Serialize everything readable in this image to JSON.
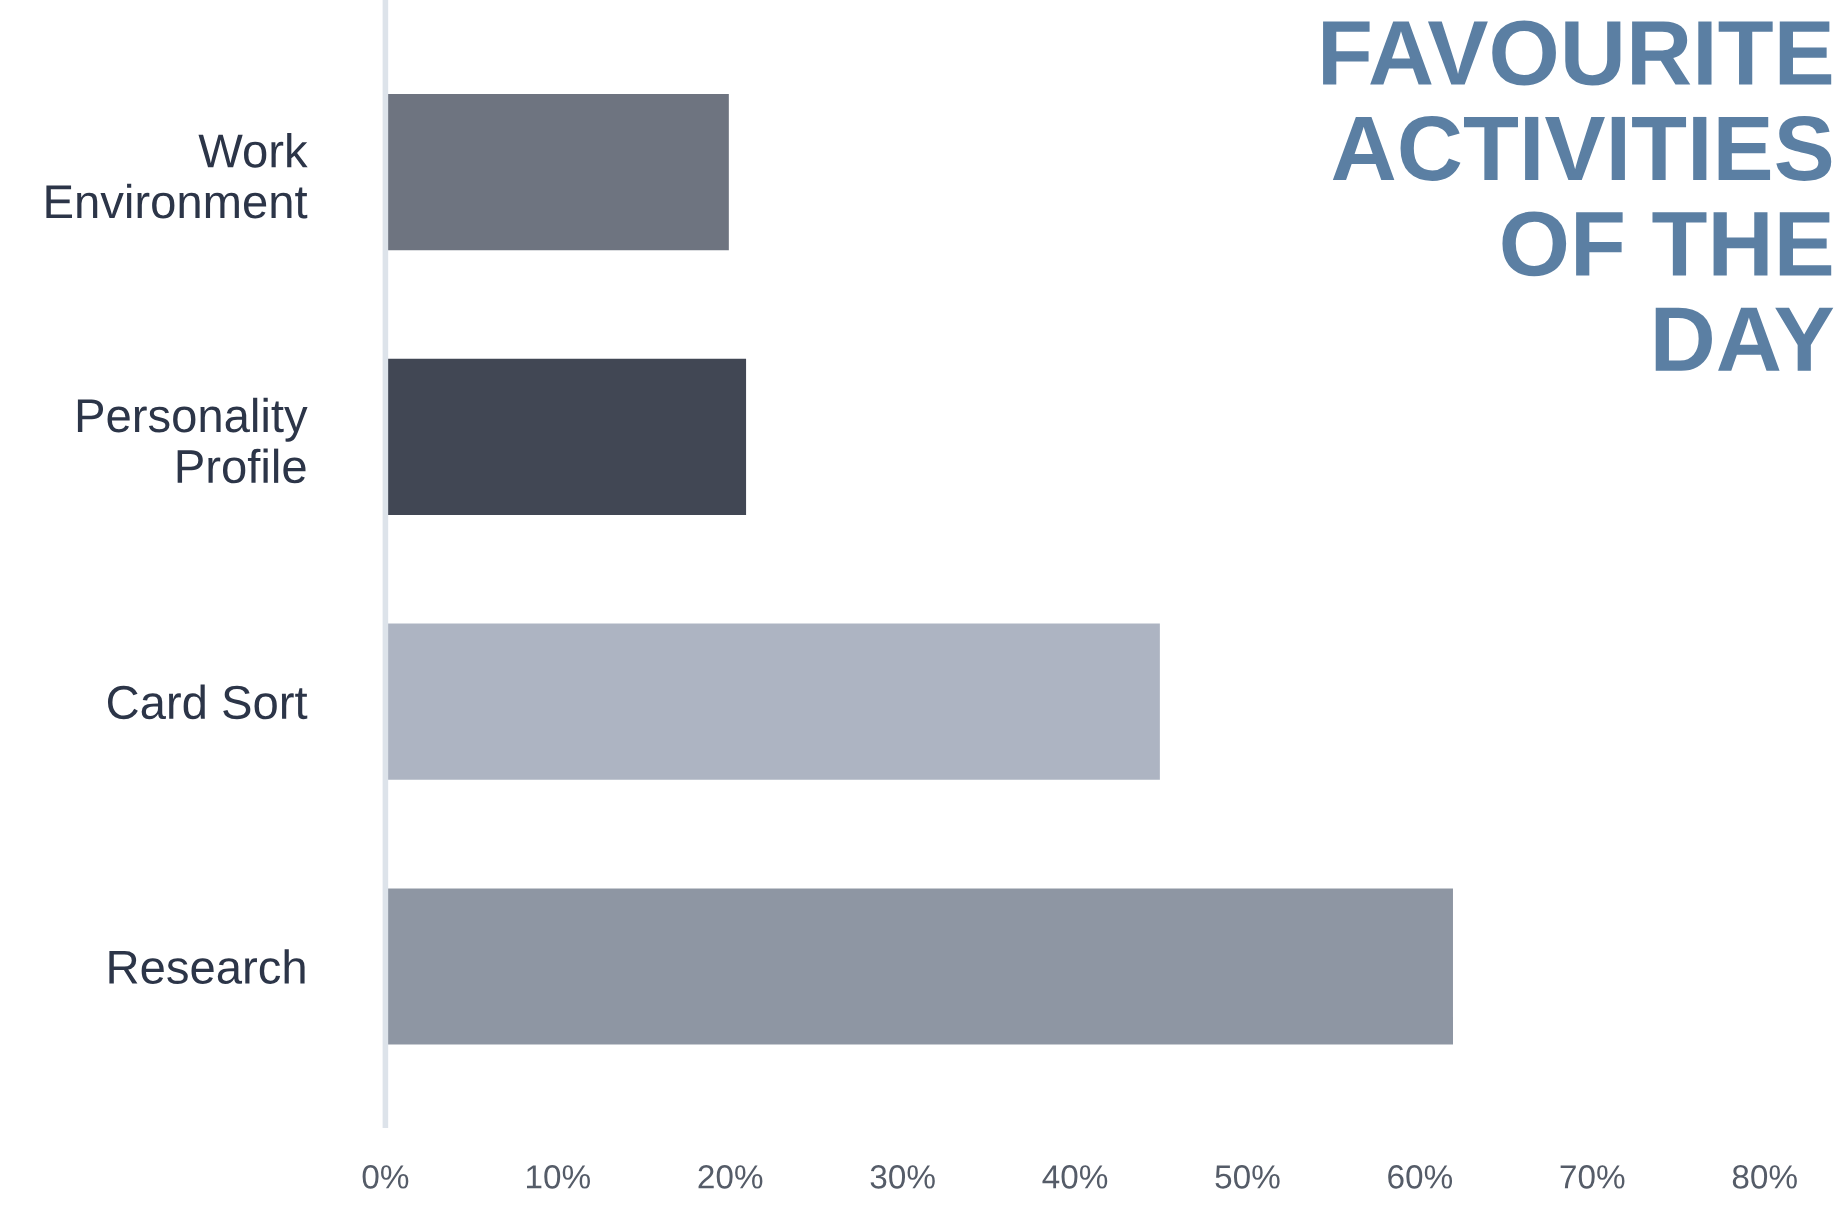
{
  "chart_data": {
    "type": "bar",
    "orientation": "horizontal",
    "title": "FAVOURITE\nACTIVITIES\nOF THE\nDAY",
    "categories": [
      "Work\nEnvironment",
      "Personality\nProfile",
      "Card Sort",
      "Research"
    ],
    "values": [
      20,
      21,
      45,
      62
    ],
    "colors": [
      "#6e7480",
      "#414754",
      "#adb4c2",
      "#8e96a3"
    ],
    "xlim": [
      0,
      80
    ],
    "xticks": [
      {
        "value": 0,
        "label": "0%"
      },
      {
        "value": 10,
        "label": "10%"
      },
      {
        "value": 20,
        "label": "20%"
      },
      {
        "value": 30,
        "label": "30%"
      },
      {
        "value": 40,
        "label": "40%"
      },
      {
        "value": 50,
        "label": "50%"
      },
      {
        "value": 60,
        "label": "60%"
      },
      {
        "value": 70,
        "label": "70%"
      },
      {
        "value": 80,
        "label": "80%"
      }
    ],
    "grid": false
  }
}
